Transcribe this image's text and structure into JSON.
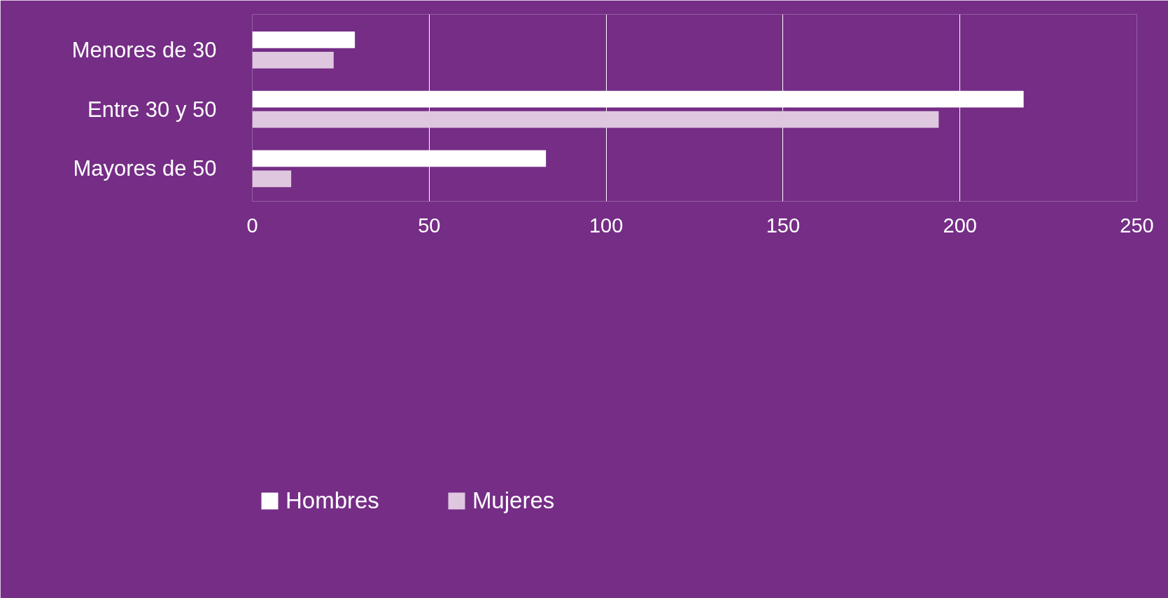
{
  "chart_data": {
    "type": "bar",
    "orientation": "horizontal",
    "categories": [
      "Menores de 30",
      "Entre 30 y 50",
      "Mayores de 50"
    ],
    "series": [
      {
        "name": "Hombres",
        "color": "#ffffff",
        "values": [
          29,
          218,
          83
        ]
      },
      {
        "name": "Mujeres",
        "color": "#dfc7e0",
        "values": [
          23,
          194,
          11
        ]
      }
    ],
    "xlim": [
      0,
      250
    ],
    "xticks": [
      0,
      50,
      100,
      150,
      200,
      250
    ],
    "grid": "x",
    "legend": "bottom left"
  }
}
